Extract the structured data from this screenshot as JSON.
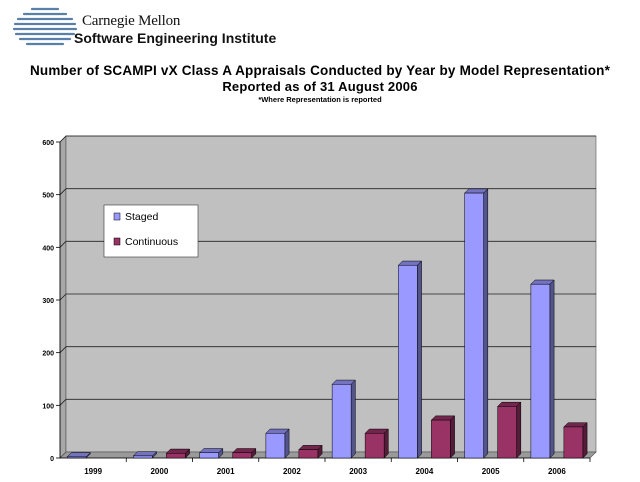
{
  "header": {
    "logo_line1": "Carnegie Mellon",
    "logo_line2": "Software Engineering Institute"
  },
  "chart_data": {
    "type": "bar",
    "title": "Number of SCAMPI vX Class A Appraisals Conducted by Year by Model Representation*",
    "subtitle": "Reported as of 31 August 2006",
    "footnote": "*Where Representation is reported",
    "xlabel": "",
    "ylabel": "",
    "categories": [
      "1999",
      "2000",
      "2001",
      "2002",
      "2003",
      "2004",
      "2005",
      "2006"
    ],
    "series": [
      {
        "name": "Staged",
        "color": "#9999ff",
        "values": [
          2,
          4,
          10,
          47,
          140,
          366,
          503,
          330
        ]
      },
      {
        "name": "Continuous",
        "color": "#993366",
        "values": [
          0,
          9,
          10,
          16,
          47,
          72,
          98,
          59
        ]
      }
    ],
    "ylim": [
      0,
      600
    ],
    "yticks": [
      "0",
      "100",
      "200",
      "300",
      "400",
      "500",
      "600"
    ],
    "grid": true,
    "legend": "upper-left inside plot"
  }
}
